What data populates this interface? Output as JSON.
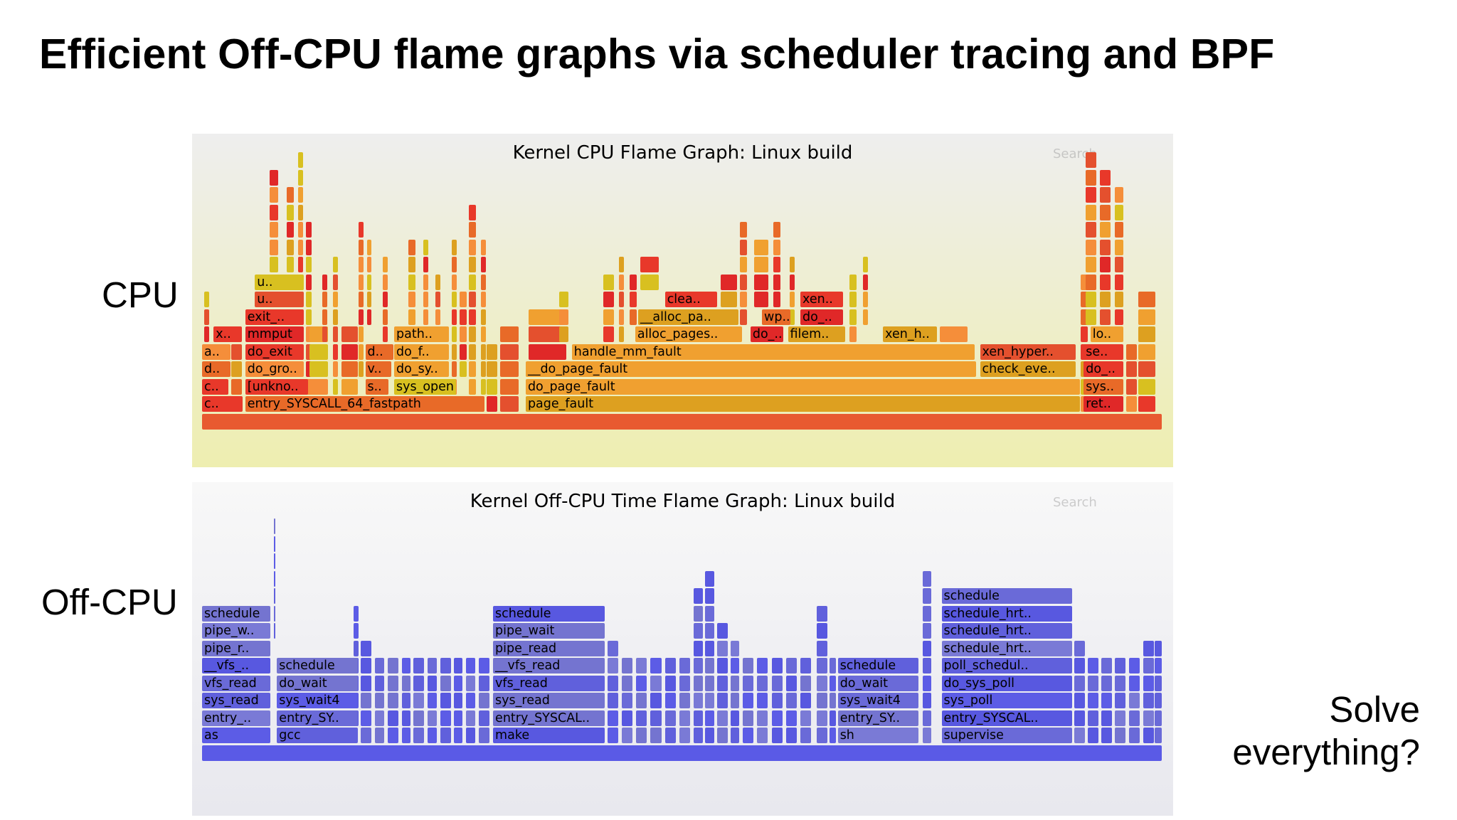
{
  "slide": {
    "title": "Efficient Off-CPU flame graphs via scheduler tracing and BPF",
    "label_cpu": "CPU",
    "label_offcpu": "Off-CPU",
    "callout_line1": "Solve",
    "callout_line2": "everything?"
  },
  "colors": {
    "cpu_palette": [
      "#e4502e",
      "#e8382a",
      "#f0a030",
      "#d8c020",
      "#e86a28",
      "#f58e3a",
      "#dda020",
      "#e02828"
    ],
    "offcpu_palette": [
      "#6a6ad8",
      "#5858e0",
      "#7474d0",
      "#6060dc",
      "#5c5ce6",
      "#7a7ad6"
    ],
    "offcpu_root": "#5a5ae6",
    "cpu_root": "#e85a30"
  },
  "cpu_graph": {
    "title": "Kernel CPU Flame Graph: Linux build",
    "search_label": "Search",
    "labeled_frames": [
      {
        "label": "c..",
        "x": 0.0,
        "w": 0.043,
        "d": 0
      },
      {
        "label": "entry_SYSCALL_64_fastpath",
        "x": 0.045,
        "w": 0.25,
        "d": 0
      },
      {
        "label": "page_fault",
        "x": 0.337,
        "w": 0.578,
        "d": 0
      },
      {
        "label": "ret..",
        "x": 0.918,
        "w": 0.042,
        "d": 0
      },
      {
        "label": "c..",
        "x": 0.0,
        "w": 0.028,
        "d": 1
      },
      {
        "label": "[unkno..",
        "x": 0.045,
        "w": 0.066,
        "d": 1
      },
      {
        "label": "s..",
        "x": 0.17,
        "w": 0.025,
        "d": 1
      },
      {
        "label": "sys_open",
        "x": 0.2,
        "w": 0.065,
        "d": 1
      },
      {
        "label": "do_page_fault",
        "x": 0.337,
        "w": 0.578,
        "d": 1
      },
      {
        "label": "sys..",
        "x": 0.918,
        "w": 0.042,
        "d": 1
      },
      {
        "label": "d..",
        "x": 0.0,
        "w": 0.03,
        "d": 2
      },
      {
        "label": "do_gro..",
        "x": 0.045,
        "w": 0.062,
        "d": 2
      },
      {
        "label": "v..",
        "x": 0.17,
        "w": 0.028,
        "d": 2
      },
      {
        "label": "do_sy..",
        "x": 0.2,
        "w": 0.058,
        "d": 2
      },
      {
        "label": "__do_page_fault",
        "x": 0.337,
        "w": 0.47,
        "d": 2
      },
      {
        "label": "check_eve..",
        "x": 0.81,
        "w": 0.1,
        "d": 2
      },
      {
        "label": "do_..",
        "x": 0.918,
        "w": 0.042,
        "d": 2
      },
      {
        "label": "a..",
        "x": 0.0,
        "w": 0.03,
        "d": 3
      },
      {
        "label": "do_exit",
        "x": 0.045,
        "w": 0.062,
        "d": 3
      },
      {
        "label": "d..",
        "x": 0.17,
        "w": 0.03,
        "d": 3
      },
      {
        "label": "do_f..",
        "x": 0.2,
        "w": 0.058,
        "d": 3
      },
      {
        "label": "handle_mm_fault",
        "x": 0.385,
        "w": 0.42,
        "d": 3
      },
      {
        "label": "xen_hyper..",
        "x": 0.81,
        "w": 0.1,
        "d": 3
      },
      {
        "label": "se..",
        "x": 0.918,
        "w": 0.042,
        "d": 3
      },
      {
        "label": "x..",
        "x": 0.012,
        "w": 0.03,
        "d": 4
      },
      {
        "label": "mmput",
        "x": 0.045,
        "w": 0.062,
        "d": 4
      },
      {
        "label": "path..",
        "x": 0.2,
        "w": 0.058,
        "d": 4
      },
      {
        "label": "alloc_pages..",
        "x": 0.451,
        "w": 0.112,
        "d": 4
      },
      {
        "label": "do_..",
        "x": 0.571,
        "w": 0.035,
        "d": 4
      },
      {
        "label": "filem..",
        "x": 0.61,
        "w": 0.06,
        "d": 4
      },
      {
        "label": "xen_h..",
        "x": 0.709,
        "w": 0.057,
        "d": 4
      },
      {
        "label": "lo..",
        "x": 0.925,
        "w": 0.035,
        "d": 4
      },
      {
        "label": "exit_..",
        "x": 0.045,
        "w": 0.062,
        "d": 5
      },
      {
        "label": "__alloc_pa..",
        "x": 0.454,
        "w": 0.105,
        "d": 5
      },
      {
        "label": "wp..",
        "x": 0.583,
        "w": 0.03,
        "d": 5
      },
      {
        "label": "do_..",
        "x": 0.623,
        "w": 0.045,
        "d": 5
      },
      {
        "label": "u..",
        "x": 0.055,
        "w": 0.052,
        "d": 6
      },
      {
        "label": "clea..",
        "x": 0.482,
        "w": 0.055,
        "d": 6
      },
      {
        "label": "xen..",
        "x": 0.623,
        "w": 0.045,
        "d": 6
      },
      {
        "label": "u..",
        "x": 0.055,
        "w": 0.052,
        "d": 7
      }
    ]
  },
  "offcpu_graph": {
    "title": "Kernel Off-CPU Time Flame Graph: Linux build",
    "search_label": "Search",
    "labeled_frames": [
      {
        "label": "as",
        "x": 0.0,
        "w": 0.072,
        "d": 0
      },
      {
        "label": "gcc",
        "x": 0.078,
        "w": 0.085,
        "d": 0
      },
      {
        "label": "make",
        "x": 0.303,
        "w": 0.117,
        "d": 0
      },
      {
        "label": "sh",
        "x": 0.662,
        "w": 0.085,
        "d": 0
      },
      {
        "label": "supervise",
        "x": 0.77,
        "w": 0.137,
        "d": 0
      },
      {
        "label": "entry_..",
        "x": 0.0,
        "w": 0.072,
        "d": 1
      },
      {
        "label": "entry_SY..",
        "x": 0.078,
        "w": 0.085,
        "d": 1
      },
      {
        "label": "entry_SYSCAL..",
        "x": 0.303,
        "w": 0.117,
        "d": 1
      },
      {
        "label": "entry_SY..",
        "x": 0.662,
        "w": 0.085,
        "d": 1
      },
      {
        "label": "entry_SYSCAL..",
        "x": 0.77,
        "w": 0.137,
        "d": 1
      },
      {
        "label": "sys_read",
        "x": 0.0,
        "w": 0.072,
        "d": 2
      },
      {
        "label": "sys_wait4",
        "x": 0.078,
        "w": 0.085,
        "d": 2
      },
      {
        "label": "sys_read",
        "x": 0.303,
        "w": 0.117,
        "d": 2
      },
      {
        "label": "sys_wait4",
        "x": 0.662,
        "w": 0.085,
        "d": 2
      },
      {
        "label": "sys_poll",
        "x": 0.77,
        "w": 0.137,
        "d": 2
      },
      {
        "label": "vfs_read",
        "x": 0.0,
        "w": 0.072,
        "d": 3
      },
      {
        "label": "do_wait",
        "x": 0.078,
        "w": 0.085,
        "d": 3
      },
      {
        "label": "vfs_read",
        "x": 0.303,
        "w": 0.117,
        "d": 3
      },
      {
        "label": "do_wait",
        "x": 0.662,
        "w": 0.085,
        "d": 3
      },
      {
        "label": "do_sys_poll",
        "x": 0.77,
        "w": 0.137,
        "d": 3
      },
      {
        "label": "__vfs_..",
        "x": 0.0,
        "w": 0.072,
        "d": 4
      },
      {
        "label": "schedule",
        "x": 0.078,
        "w": 0.085,
        "d": 4
      },
      {
        "label": "__vfs_read",
        "x": 0.303,
        "w": 0.117,
        "d": 4
      },
      {
        "label": "schedule",
        "x": 0.662,
        "w": 0.085,
        "d": 4
      },
      {
        "label": "poll_schedul..",
        "x": 0.77,
        "w": 0.137,
        "d": 4
      },
      {
        "label": "pipe_r..",
        "x": 0.0,
        "w": 0.072,
        "d": 5
      },
      {
        "label": "pipe_read",
        "x": 0.303,
        "w": 0.117,
        "d": 5
      },
      {
        "label": "schedule_hrt..",
        "x": 0.77,
        "w": 0.137,
        "d": 5
      },
      {
        "label": "pipe_w..",
        "x": 0.0,
        "w": 0.072,
        "d": 6
      },
      {
        "label": "pipe_wait",
        "x": 0.303,
        "w": 0.117,
        "d": 6
      },
      {
        "label": "schedule_hrt..",
        "x": 0.77,
        "w": 0.137,
        "d": 6
      },
      {
        "label": "schedule",
        "x": 0.0,
        "w": 0.072,
        "d": 7
      },
      {
        "label": "schedule",
        "x": 0.303,
        "w": 0.117,
        "d": 7
      },
      {
        "label": "schedule_hrt..",
        "x": 0.77,
        "w": 0.137,
        "d": 7
      },
      {
        "label": "schedule",
        "x": 0.77,
        "w": 0.137,
        "d": 8
      }
    ]
  }
}
